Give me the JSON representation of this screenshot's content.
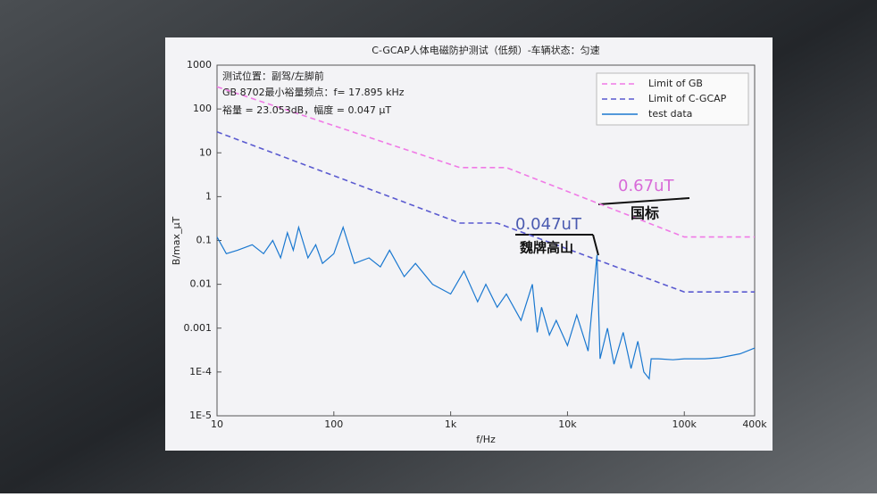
{
  "chart_data": {
    "type": "line",
    "title": "C-GCAP人体电磁防护测试（低频）-车辆状态：匀速",
    "xlabel": "f/Hz",
    "ylabel": "B/max_μT",
    "xscale": "log",
    "yscale": "log",
    "xlim": [
      10,
      400000
    ],
    "ylim": [
      1e-05,
      1000
    ],
    "xticks": [
      10,
      100,
      {
        "value": 1000,
        "label": "1k"
      },
      {
        "value": 10000,
        "label": "10k"
      },
      {
        "value": 100000,
        "label": "100k"
      },
      {
        "value": 400000,
        "label": "400k"
      }
    ],
    "yticks": [
      1000,
      100,
      10,
      1,
      0.1,
      0.01,
      0.001,
      {
        "value": 0.0001,
        "label": "1E-4"
      },
      {
        "value": 1e-05,
        "label": "1E-5"
      }
    ],
    "legend": "upper right",
    "annotations": [
      "测试位置：副驾/左脚前",
      "GB 8702最小裕量频点：f= 17.895 kHz",
      "裕量 = 23.053dB，幅度 = 0.047 μT",
      "0.67uT",
      "国标",
      "0.047uT",
      "魏牌高山"
    ],
    "series": [
      {
        "name": "Limit of GB",
        "color": "#f07ae6",
        "linestyle": "dashed",
        "x": [
          10,
          1200,
          3000,
          100000,
          400000
        ],
        "values": [
          320,
          4.6,
          4.6,
          0.12,
          0.12
        ]
      },
      {
        "name": "Limit of C-GCAP",
        "color": "#5a5ad0",
        "linestyle": "dashed",
        "x": [
          10,
          1200,
          2500,
          100000,
          400000
        ],
        "values": [
          30,
          0.25,
          0.25,
          0.0067,
          0.0067
        ]
      },
      {
        "name": "test data",
        "color": "#1a78d0",
        "linestyle": "solid",
        "x": [
          10,
          12,
          15,
          20,
          25,
          30,
          35,
          40,
          45,
          50,
          60,
          70,
          80,
          100,
          120,
          150,
          200,
          250,
          300,
          400,
          500,
          700,
          1000,
          1300,
          1700,
          2000,
          2500,
          3000,
          4000,
          5000,
          5500,
          6000,
          7000,
          8000,
          10000,
          12000,
          15000,
          17895,
          19000,
          22000,
          25000,
          30000,
          35000,
          40000,
          45000,
          50000,
          52000,
          60000,
          80000,
          100000,
          150000,
          200000,
          300000,
          400000
        ],
        "values": [
          0.12,
          0.05,
          0.06,
          0.08,
          0.05,
          0.1,
          0.04,
          0.15,
          0.06,
          0.2,
          0.04,
          0.08,
          0.03,
          0.05,
          0.2,
          0.03,
          0.04,
          0.025,
          0.06,
          0.015,
          0.03,
          0.01,
          0.006,
          0.02,
          0.004,
          0.01,
          0.003,
          0.006,
          0.0015,
          0.01,
          0.0008,
          0.003,
          0.0007,
          0.0015,
          0.0004,
          0.002,
          0.0003,
          0.047,
          0.0002,
          0.001,
          0.00015,
          0.0008,
          0.00012,
          0.0005,
          0.0001,
          7e-05,
          0.0002,
          0.0002,
          0.00019,
          0.0002,
          0.0002,
          0.00021,
          0.00026,
          0.00035
        ]
      }
    ]
  }
}
